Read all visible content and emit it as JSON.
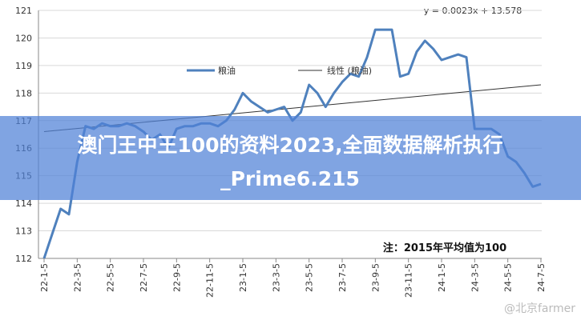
{
  "chart_data": {
    "type": "line",
    "categories": [
      "22-1-5",
      null,
      null,
      null,
      "22-3-5",
      null,
      null,
      null,
      "22-5-5",
      null,
      null,
      null,
      "22-7-5",
      null,
      null,
      null,
      "22-9-5",
      null,
      null,
      null,
      "22-11-5",
      null,
      null,
      null,
      "23-1-5",
      null,
      null,
      null,
      "23-3-5",
      null,
      null,
      null,
      "23-5-5",
      null,
      null,
      null,
      "23-7-5",
      null,
      null,
      null,
      "23-9-5",
      null,
      null,
      null,
      "23-11-5",
      null,
      null,
      null,
      "24-1-5",
      null,
      null,
      null,
      "24-3-5",
      null,
      null,
      null,
      "24-5-5",
      null,
      null,
      null,
      "24-7-5"
    ],
    "series": [
      {
        "name": "粮油",
        "color": "#4f81bd",
        "values": [
          112.0,
          112.9,
          113.8,
          113.6,
          115.5,
          116.8,
          116.7,
          116.9,
          116.8,
          116.8,
          116.9,
          116.8,
          116.6,
          116.3,
          116.5,
          116.0,
          116.7,
          116.8,
          116.8,
          116.9,
          116.9,
          116.8,
          117.0,
          117.4,
          118.0,
          117.7,
          117.5,
          117.3,
          117.4,
          117.5,
          117.0,
          117.3,
          118.3,
          118.0,
          117.5,
          118.0,
          118.4,
          118.7,
          118.6,
          119.3,
          120.3,
          120.3,
          120.3,
          118.6,
          118.7,
          119.5,
          119.9,
          119.6,
          119.2,
          119.3,
          119.4,
          119.3,
          116.7,
          116.7,
          116.7,
          116.5,
          115.7,
          115.5,
          115.1,
          114.6,
          114.7
        ]
      }
    ],
    "trend": {
      "name": "线性 (粮油)",
      "color": "#333333",
      "start": 116.6,
      "end": 118.3,
      "equation": "y = 0.0023x + 13.578"
    },
    "ylim": [
      112,
      121
    ],
    "yticks": [
      112,
      113,
      114,
      115,
      116,
      117,
      118,
      119,
      120,
      121
    ],
    "grid": true,
    "note": "注：2015年平均值为100"
  },
  "overlay": {
    "lines": [
      "澳门王中王100的资料2023,全面数据解析执行",
      "_Prime6.215"
    ]
  },
  "watermark": "@北京farmer"
}
